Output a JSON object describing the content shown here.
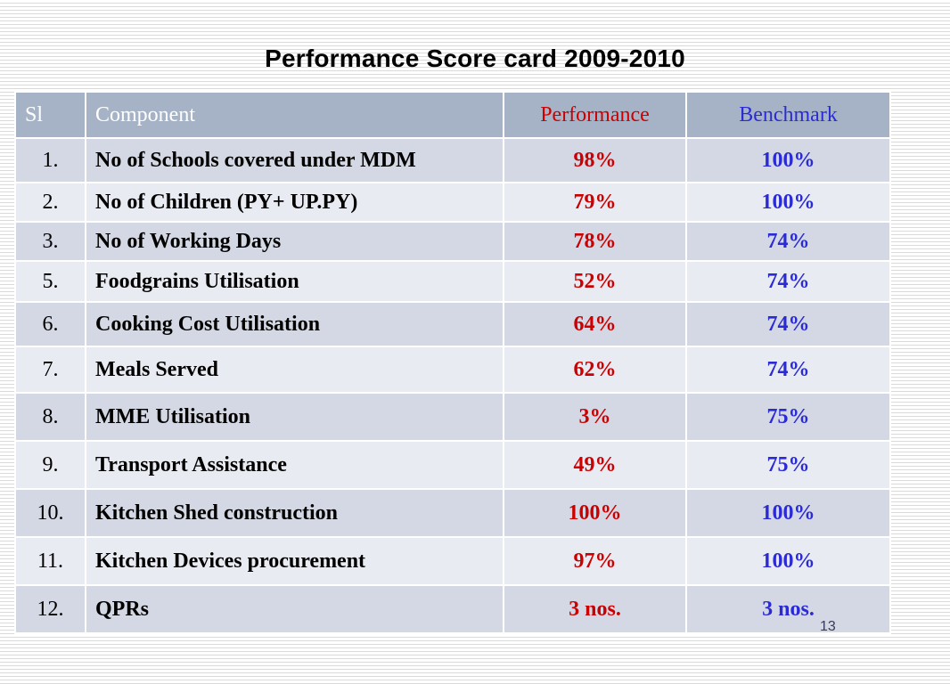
{
  "title": "Performance Score card 2009-2010",
  "columns": {
    "sl": "Sl",
    "component": "Component",
    "performance": "Performance",
    "benchmark": "Benchmark"
  },
  "rows": [
    {
      "sl": "1.",
      "component": "No of Schools covered under MDM",
      "performance": "98%",
      "benchmark": "100%"
    },
    {
      "sl": "2.",
      "component": "No of Children (PY+ UP.PY)",
      "performance": "79%",
      "benchmark": "100%"
    },
    {
      "sl": "3.",
      "component": "No of Working Days",
      "performance": "78%",
      "benchmark": "74%"
    },
    {
      "sl": "5.",
      "component": "Foodgrains Utilisation",
      "performance": "52%",
      "benchmark": "74%"
    },
    {
      "sl": "6.",
      "component": "Cooking Cost Utilisation",
      "performance": "64%",
      "benchmark": "74%"
    },
    {
      "sl": "7.",
      "component": "Meals Served",
      "performance": "62%",
      "benchmark": "74%"
    },
    {
      "sl": "8.",
      "component": "MME Utilisation",
      "performance": "3%",
      "benchmark": "75%"
    },
    {
      "sl": "9.",
      "component": "Transport Assistance",
      "performance": "49%",
      "benchmark": "75%"
    },
    {
      "sl": "10.",
      "component": "Kitchen Shed construction",
      "performance": "100%",
      "benchmark": "100%"
    },
    {
      "sl": "11.",
      "component": "Kitchen Devices procurement",
      "performance": "97%",
      "benchmark": "100%"
    },
    {
      "sl": "12.",
      "component": "QPRs",
      "performance": "3 nos.",
      "benchmark": "3 nos."
    }
  ],
  "page_number": "13",
  "colors": {
    "header_background": "#a6b3c6",
    "row_dark": "#d4d8e4",
    "row_light": "#e9ebf2",
    "performance_text": "#cc0000",
    "benchmark_text": "#2b2bd6"
  }
}
